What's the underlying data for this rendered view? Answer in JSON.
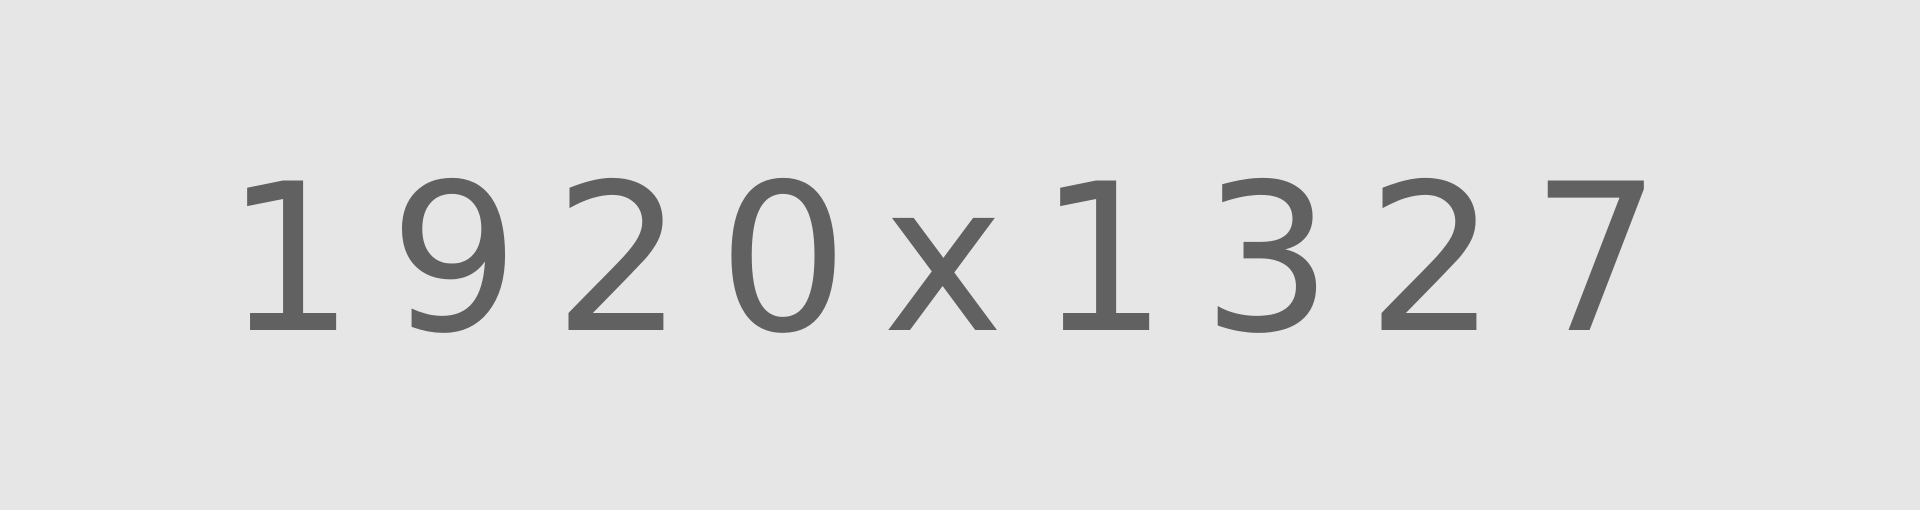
{
  "placeholder": {
    "label": "1920x1327",
    "background_color": "#e6e6e6",
    "text_color": "#616161"
  }
}
